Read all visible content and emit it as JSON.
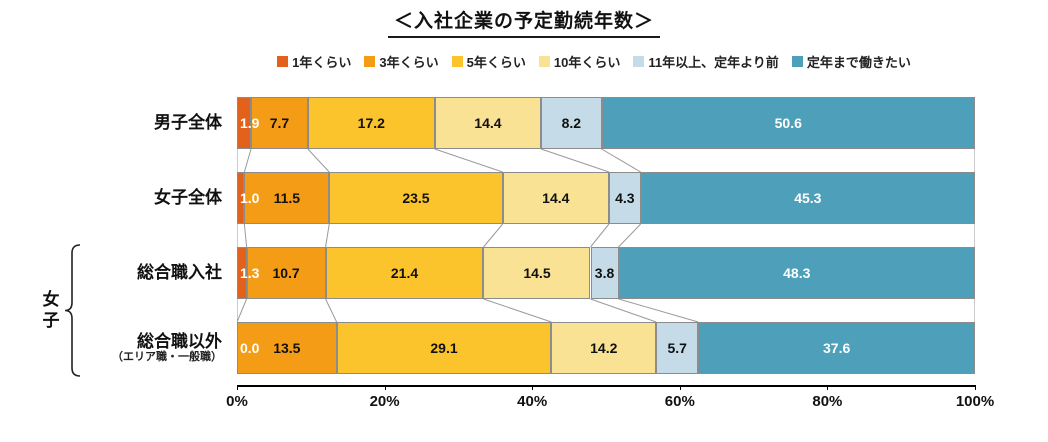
{
  "title": "＜入社企業の予定勤続年数＞",
  "chart_data": {
    "type": "bar",
    "stacked": true,
    "orientation": "horizontal",
    "unit": "%",
    "title": "＜入社企業の予定勤続年数＞",
    "legend_position": "top",
    "legend": [
      {
        "label": "1年くらい",
        "color": "#E2611B"
      },
      {
        "label": "3年くらい",
        "color": "#F59C16"
      },
      {
        "label": "5年くらい",
        "color": "#FCC42C"
      },
      {
        "label": "10年くらい",
        "color": "#FAE294"
      },
      {
        "label": "11年以上、定年より前",
        "color": "#C5DCE8"
      },
      {
        "label": "定年まで働きたい",
        "color": "#4E9FBA"
      }
    ],
    "rows": [
      {
        "label": "男子全体",
        "sublabel": "",
        "values": [
          1.9,
          7.7,
          17.2,
          14.4,
          8.2,
          50.6
        ]
      },
      {
        "label": "女子全体",
        "sublabel": "",
        "values": [
          1.0,
          11.5,
          23.5,
          14.4,
          4.3,
          45.3
        ]
      },
      {
        "label": "総合職入社",
        "sublabel": "",
        "values": [
          1.3,
          10.7,
          21.4,
          14.5,
          3.8,
          48.3
        ]
      },
      {
        "label": "総合職以外",
        "sublabel": "（エリア職・一般職）",
        "values": [
          0.0,
          13.5,
          29.1,
          14.2,
          5.7,
          37.6
        ]
      }
    ],
    "group_bracket": {
      "label": "女子",
      "rows": [
        2,
        3
      ]
    },
    "x_ticks": [
      "0%",
      "20%",
      "40%",
      "60%",
      "80%",
      "100%"
    ],
    "xlim": [
      0,
      100
    ],
    "grid": false
  }
}
